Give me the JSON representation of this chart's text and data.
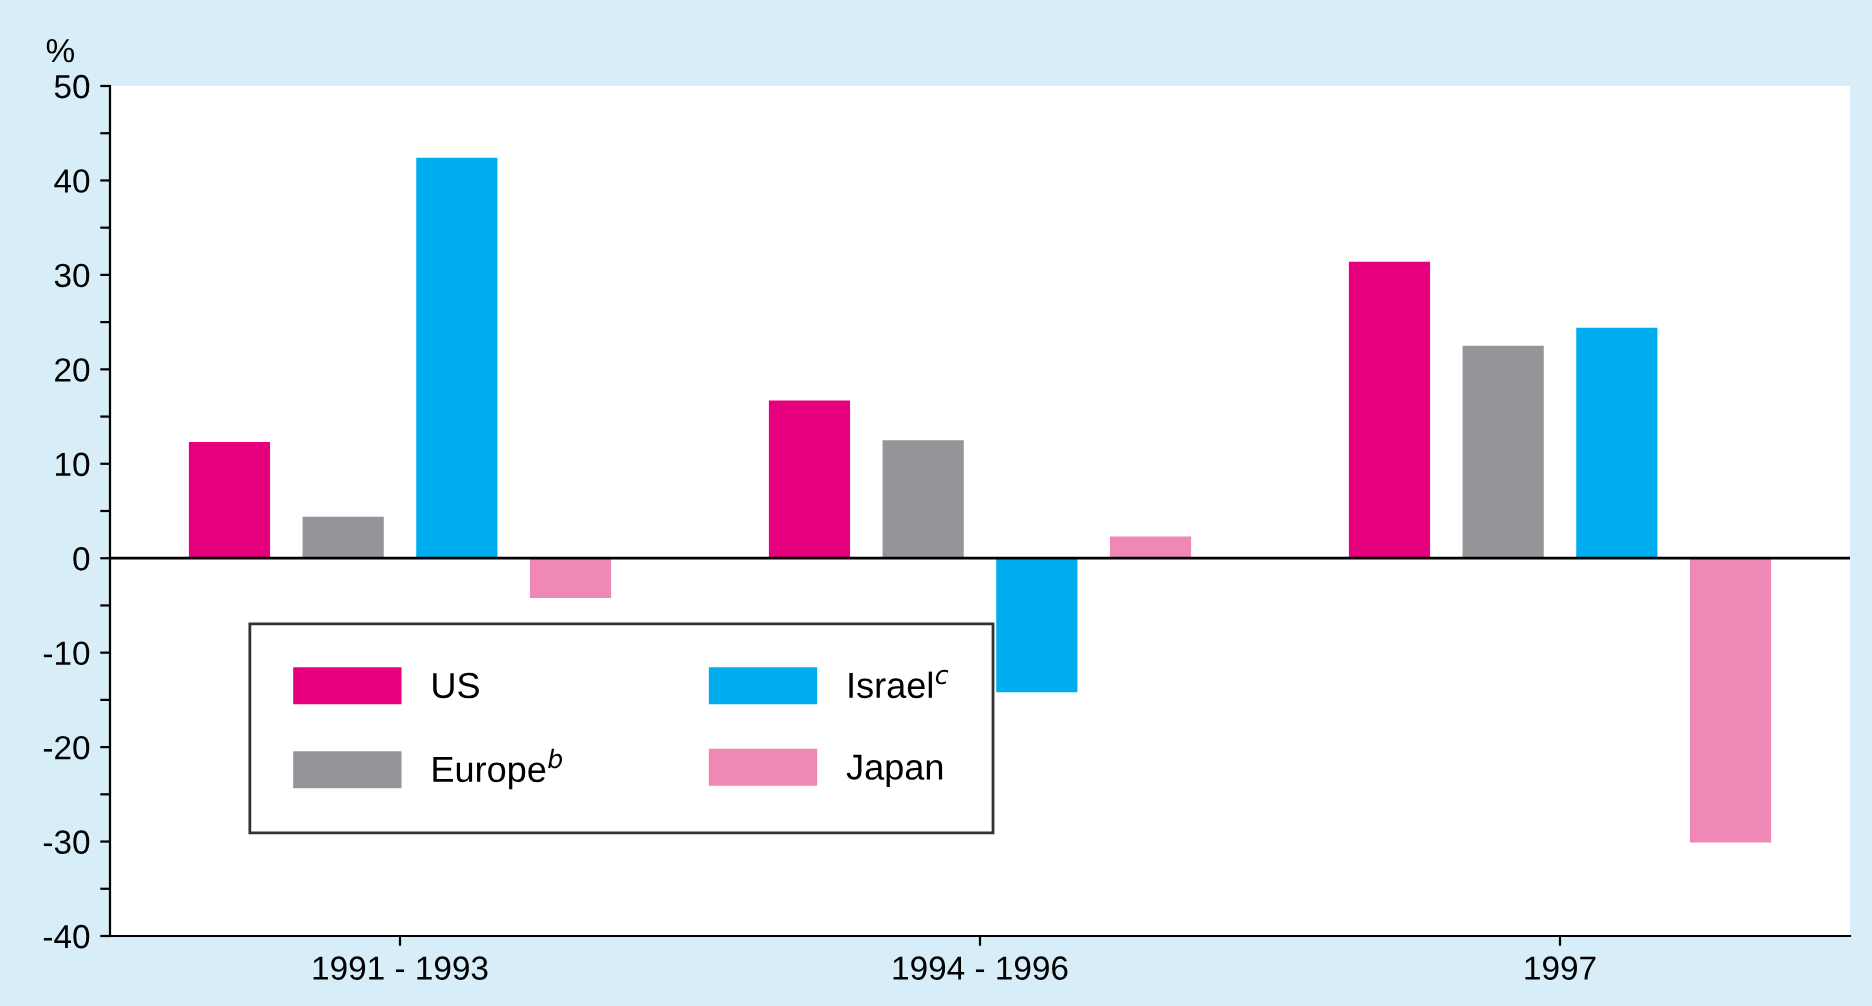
{
  "chart_data": {
    "type": "bar",
    "ylabel": "%",
    "categories": [
      "1991 - 1993",
      "1994 - 1996",
      "1997"
    ],
    "series": [
      {
        "name": "US",
        "color": "#e6007e",
        "values": [
          12.3,
          16.7,
          31.4
        ]
      },
      {
        "name": "Europe$^{b}$",
        "color": "#939598",
        "values": [
          4.4,
          12.5,
          22.5
        ]
      },
      {
        "name": "Israel$^{c}$",
        "color": "#00aeef",
        "values": [
          42.4,
          -14.2,
          24.4
        ]
      },
      {
        "name": "Japan",
        "color": "#f088b6",
        "values": [
          -4.2,
          2.3,
          -30.1
        ]
      }
    ],
    "ylim": [
      -40,
      50
    ],
    "yticks": [
      -40,
      {
        "value": -35,
        "label": null
      },
      -30,
      {
        "value": -25,
        "label": null
      },
      -20,
      {
        "value": -15,
        "label": null
      },
      -10,
      {
        "value": -5,
        "label": null
      },
      0,
      {
        "value": 5,
        "label": null
      },
      10,
      {
        "value": 15,
        "label": null
      },
      20,
      {
        "value": 25,
        "label": null
      },
      30,
      {
        "value": 35,
        "label": null
      },
      40,
      {
        "value": 45,
        "label": null
      },
      50
    ],
    "ref_lines": [
      {
        "axis": "y",
        "value": 0,
        "color": "#000000"
      }
    ],
    "grid": false,
    "legend": "bottom left"
  }
}
